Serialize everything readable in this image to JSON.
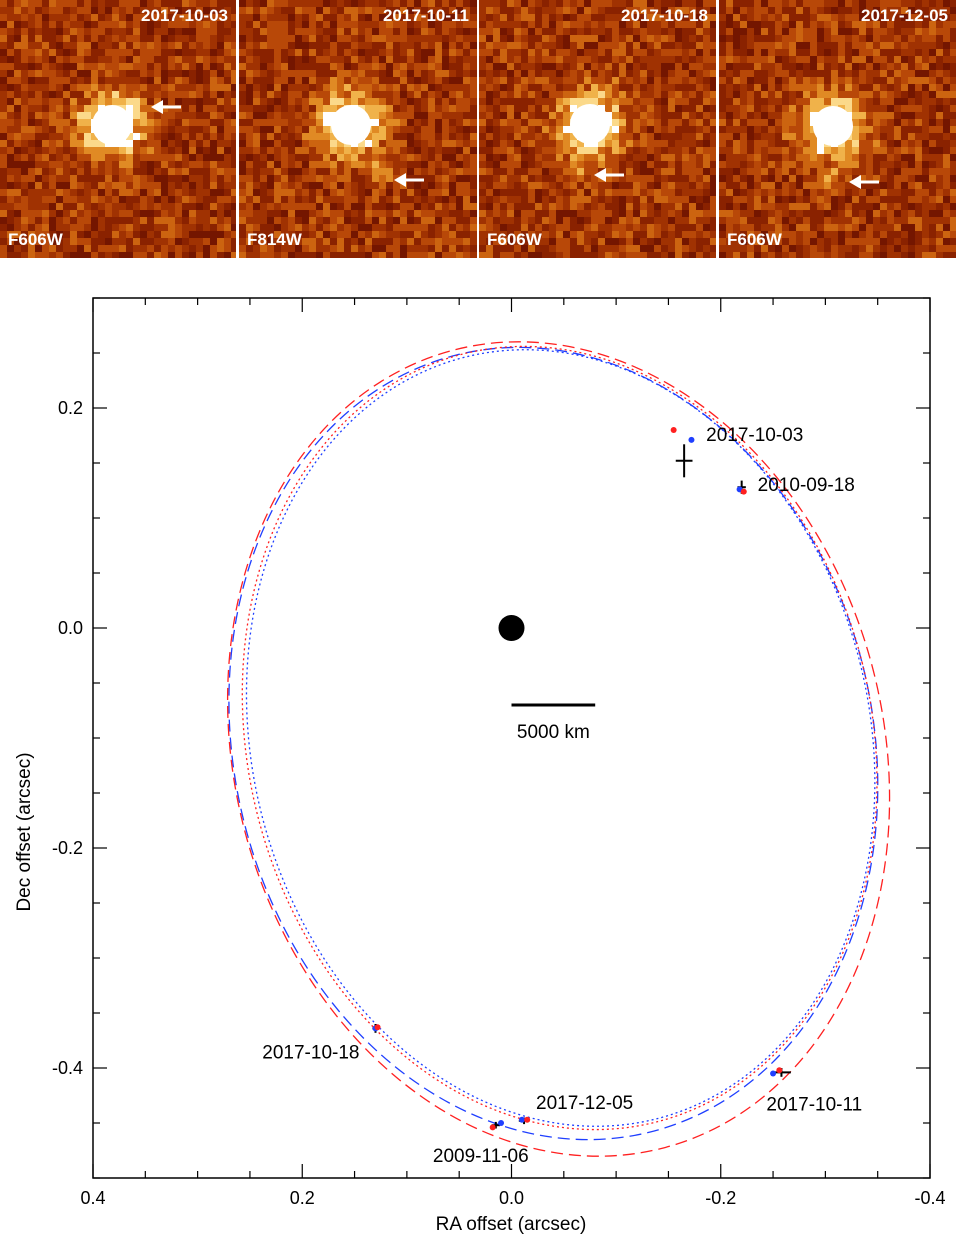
{
  "panels": [
    {
      "date": "2017-10-03",
      "filter": "F606W"
    },
    {
      "date": "2017-10-11",
      "filter": "F814W"
    },
    {
      "date": "2017-10-18",
      "filter": "F606W"
    },
    {
      "date": "2017-12-05",
      "filter": "F606W"
    }
  ],
  "chart_data": {
    "type": "scatter",
    "xlabel": "RA offset (arcsec)",
    "ylabel": "Dec offset (arcsec)",
    "xlim": [
      0.4,
      -0.4
    ],
    "ylim": [
      -0.5,
      0.3
    ],
    "xticks": [
      0.4,
      0.2,
      0.0,
      -0.2,
      -0.4
    ],
    "xtick_labels": [
      "0.4",
      "0.2",
      "0.0",
      "-0.2",
      "-0.4"
    ],
    "yticks": [
      0.2,
      0.0,
      -0.2,
      -0.4
    ],
    "ytick_labels": [
      "0.2",
      "0.0",
      "-0.2",
      "-0.4"
    ],
    "scale_bar": {
      "label": "5000 km",
      "length_arcsec": 0.08
    },
    "primary": {
      "x": 0.0,
      "y": 0.0
    },
    "orbits": [
      {
        "color": "#1f3fff",
        "style": "dashed",
        "center": [
          -0.04,
          -0.105
        ],
        "rx": 0.305,
        "ry": 0.364,
        "angle_deg": -14
      },
      {
        "color": "#ff2020",
        "style": "dashed",
        "center": [
          -0.045,
          -0.11
        ],
        "rx": 0.31,
        "ry": 0.375,
        "angle_deg": -15
      },
      {
        "color": "#1f3fff",
        "style": "dotted",
        "center": [
          -0.047,
          -0.1
        ],
        "rx": 0.295,
        "ry": 0.357,
        "angle_deg": -14
      },
      {
        "color": "#ff2020",
        "style": "dotted",
        "center": [
          -0.046,
          -0.1
        ],
        "rx": 0.298,
        "ry": 0.36,
        "angle_deg": -14
      }
    ],
    "observations": [
      {
        "label": "2017-10-03",
        "x": -0.165,
        "y": 0.152,
        "err_x": 0.008,
        "err_y": 0.015
      },
      {
        "label": "2010-09-18",
        "x": -0.22,
        "y": 0.128,
        "err_x": 0.004,
        "err_y": 0.006
      },
      {
        "label": "2017-10-18",
        "x": 0.13,
        "y": -0.364,
        "err_x": 0.003,
        "err_y": 0.004
      },
      {
        "label": "2009-11-06",
        "x": 0.015,
        "y": -0.452,
        "err_x": 0.004,
        "err_y": 0.003
      },
      {
        "label": "2017-12-05",
        "x": -0.012,
        "y": -0.448,
        "err_x": 0.005,
        "err_y": 0.003
      },
      {
        "label": "2017-10-11",
        "x": -0.258,
        "y": -0.404,
        "err_x": 0.009,
        "err_y": 0.004
      }
    ],
    "model_blue": [
      [
        -0.172,
        0.171
      ],
      [
        -0.218,
        0.126
      ],
      [
        0.13,
        -0.364
      ],
      [
        0.01,
        -0.45
      ],
      [
        -0.01,
        -0.447
      ],
      [
        -0.25,
        -0.405
      ]
    ],
    "model_red": [
      [
        -0.155,
        0.18
      ],
      [
        -0.222,
        0.124
      ],
      [
        0.128,
        -0.363
      ],
      [
        0.018,
        -0.454
      ],
      [
        -0.015,
        -0.447
      ],
      [
        -0.256,
        -0.402
      ]
    ]
  }
}
